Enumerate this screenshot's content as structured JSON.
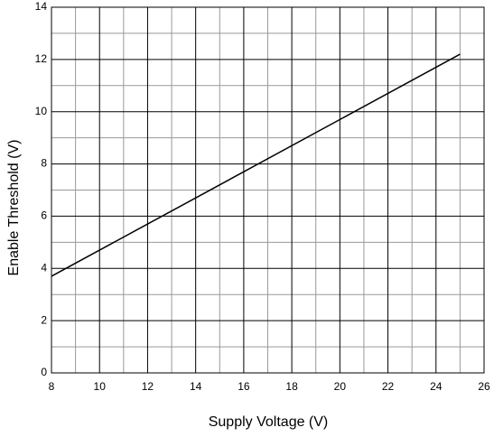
{
  "chart_data": {
    "type": "line",
    "x_label": "Supply Voltage (V)",
    "y_label": "Enable Threshold (V)",
    "x": [
      8,
      25
    ],
    "series": [
      {
        "color": "#000000",
        "values": [
          3.7,
          12.2
        ]
      }
    ],
    "xlim": [
      8,
      26
    ],
    "xticks": [
      8,
      10,
      12,
      14,
      16,
      18,
      20,
      22,
      24,
      26
    ],
    "ylim": [
      0,
      14
    ],
    "yticks": [
      0,
      2,
      4,
      6,
      8,
      10,
      12,
      14
    ],
    "grid": true,
    "minor_grid": true
  }
}
